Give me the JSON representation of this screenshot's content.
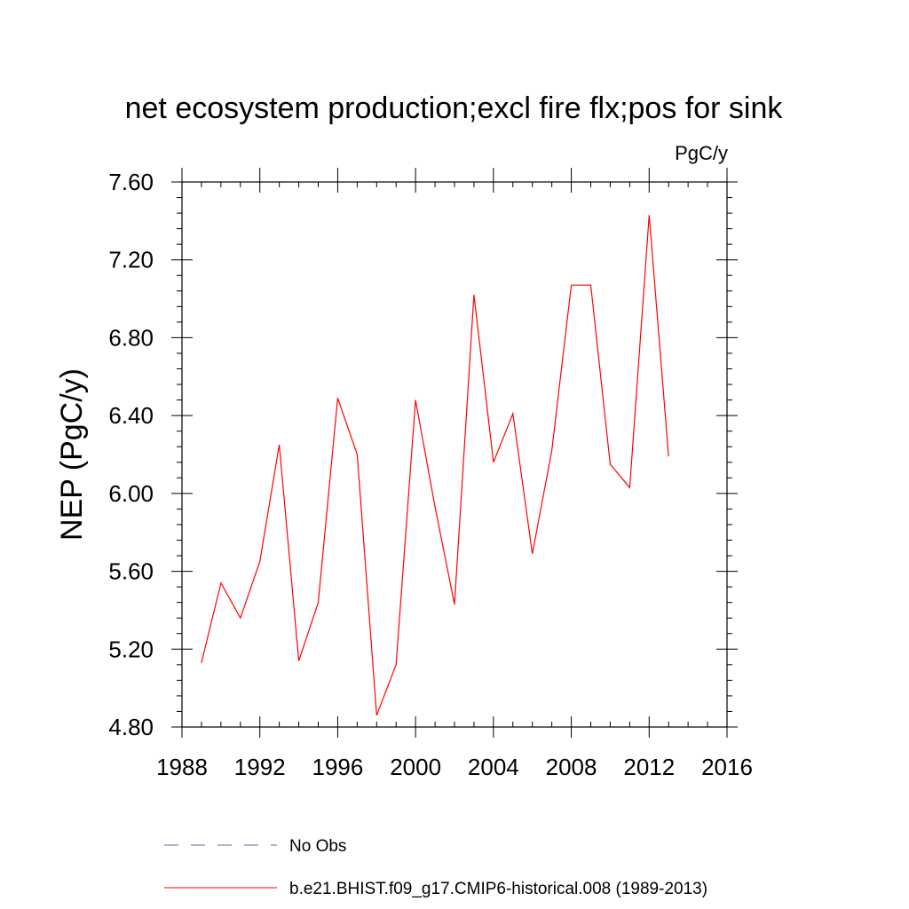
{
  "chart_data": {
    "type": "line",
    "title": "net ecosystem production;excl fire flx;pos for sink",
    "units": "PgC/y",
    "ylabel": "NEP  (PgC/y)",
    "xlabel": "",
    "xlim": [
      1988,
      2016
    ],
    "ylim": [
      4.8,
      7.6
    ],
    "x_ticks": [
      1988,
      1992,
      1996,
      2000,
      2004,
      2008,
      2012,
      2016
    ],
    "x_tick_labels": [
      "1988",
      "1992",
      "1996",
      "2000",
      "2004",
      "2008",
      "2012",
      "2016"
    ],
    "y_ticks": [
      4.8,
      5.2,
      5.6,
      6.0,
      6.4,
      6.8,
      7.2,
      7.6
    ],
    "y_tick_labels": [
      "4.80",
      "5.20",
      "5.60",
      "6.00",
      "6.40",
      "6.80",
      "7.20",
      "7.60"
    ],
    "grid": false,
    "legend_position": "bottom",
    "series": [
      {
        "name": "b.e21.BHIST.f09_g17.CMIP6-historical.008 (1989-2013)",
        "color": "#ff0000",
        "style": "solid",
        "x": [
          1989,
          1990,
          1991,
          1992,
          1993,
          1994,
          1995,
          1996,
          1997,
          1998,
          1999,
          2000,
          2001,
          2002,
          2003,
          2004,
          2005,
          2006,
          2007,
          2008,
          2009,
          2010,
          2011,
          2012,
          2013
        ],
        "y": [
          5.13,
          5.54,
          5.36,
          5.65,
          6.25,
          5.14,
          5.44,
          6.49,
          6.2,
          4.86,
          5.12,
          6.48,
          5.93,
          5.43,
          7.02,
          6.16,
          6.41,
          5.69,
          6.22,
          7.07,
          7.07,
          6.15,
          6.03,
          7.43,
          6.19
        ]
      }
    ],
    "legend": [
      {
        "label": "No Obs",
        "color": "#6666aa",
        "style": "dashed"
      },
      {
        "label": "b.e21.BHIST.f09_g17.CMIP6-historical.008 (1989-2013)",
        "color": "#ff0000",
        "style": "solid"
      }
    ]
  }
}
